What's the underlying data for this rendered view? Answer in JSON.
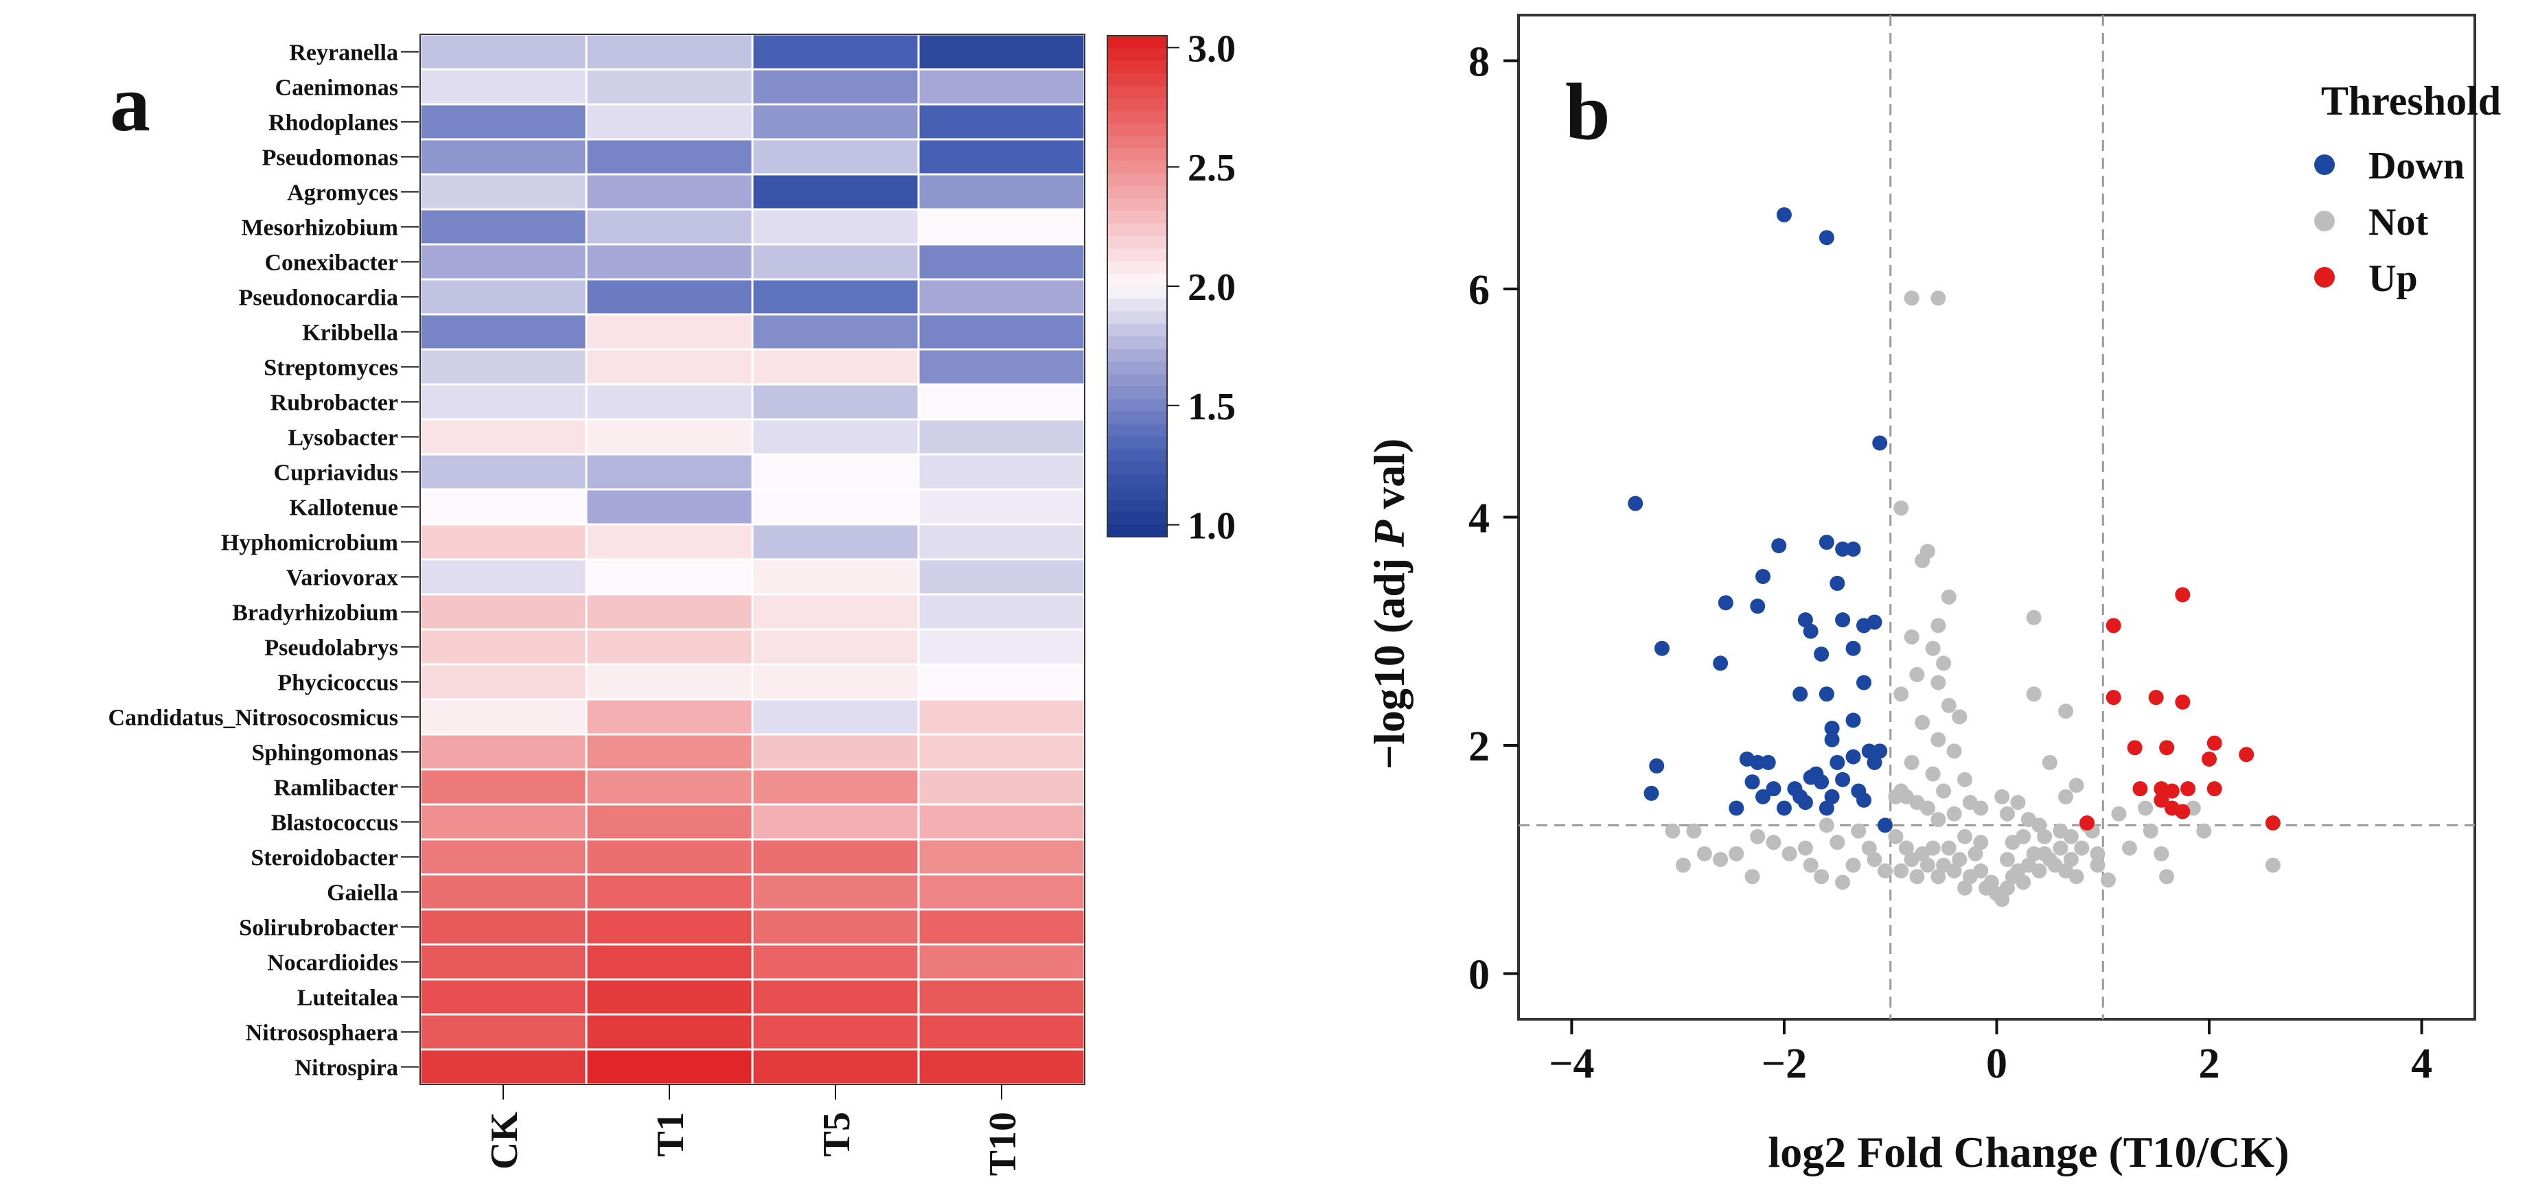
{
  "panel_a": {
    "label": "a",
    "chart_data": {
      "type": "heatmap",
      "columns": [
        "CK",
        "T1",
        "T5",
        "T10"
      ],
      "rows": [
        "Reyranella",
        "Caenimonas",
        "Rhodoplanes",
        "Pseudomonas",
        "Agromyces",
        "Mesorhizobium",
        "Conexibacter",
        "Pseudonocardia",
        "Kribbella",
        "Streptomyces",
        "Rubrobacter",
        "Lysobacter",
        "Cupriavidus",
        "Kallotenue",
        "Hyphomicrobium",
        "Variovorax",
        "Bradyrhizobium",
        "Pseudolabrys",
        "Phycicoccus",
        "Candidatus_Nitrosocosmicus",
        "Sphingomonas",
        "Ramlibacter",
        "Blastococcus",
        "Steroidobacter",
        "Gaiella",
        "Solirubrobacter",
        "Nocardioides",
        "Luteitalea",
        "Nitrososphaera",
        "Nitrospira"
      ],
      "values": [
        [
          1.8,
          1.8,
          1.3,
          1.1
        ],
        [
          1.9,
          1.85,
          1.55,
          1.7
        ],
        [
          1.5,
          1.9,
          1.6,
          1.3
        ],
        [
          1.6,
          1.5,
          1.8,
          1.3
        ],
        [
          1.85,
          1.7,
          1.2,
          1.6
        ],
        [
          1.5,
          1.8,
          1.9,
          2.0
        ],
        [
          1.7,
          1.7,
          1.8,
          1.5
        ],
        [
          1.8,
          1.45,
          1.4,
          1.7
        ],
        [
          1.5,
          2.1,
          1.55,
          1.5
        ],
        [
          1.85,
          2.1,
          2.1,
          1.55
        ],
        [
          1.9,
          1.9,
          1.8,
          2.0
        ],
        [
          2.1,
          2.05,
          1.9,
          1.85
        ],
        [
          1.8,
          1.75,
          2.0,
          1.9
        ],
        [
          2.0,
          1.7,
          2.0,
          1.95
        ],
        [
          2.2,
          2.1,
          1.8,
          1.9
        ],
        [
          1.9,
          2.0,
          2.05,
          1.85
        ],
        [
          2.25,
          2.25,
          2.1,
          1.9
        ],
        [
          2.2,
          2.2,
          2.1,
          1.95
        ],
        [
          2.15,
          2.05,
          2.05,
          2.0
        ],
        [
          2.05,
          2.35,
          1.9,
          2.2
        ],
        [
          2.4,
          2.5,
          2.25,
          2.2
        ],
        [
          2.6,
          2.5,
          2.5,
          2.25
        ],
        [
          2.5,
          2.6,
          2.35,
          2.35
        ],
        [
          2.6,
          2.65,
          2.65,
          2.5
        ],
        [
          2.65,
          2.7,
          2.6,
          2.55
        ],
        [
          2.75,
          2.8,
          2.65,
          2.7
        ],
        [
          2.75,
          2.85,
          2.7,
          2.6
        ],
        [
          2.8,
          2.9,
          2.8,
          2.75
        ],
        [
          2.75,
          2.9,
          2.8,
          2.8
        ],
        [
          2.9,
          3.0,
          2.9,
          2.9
        ]
      ],
      "colorbar": {
        "min": 0.95,
        "max": 3.05,
        "ticks": [
          "3.0",
          "2.5",
          "2.0",
          "1.5",
          "1.0"
        ],
        "tick_values": [
          3.0,
          2.5,
          2.0,
          1.5,
          1.0
        ]
      }
    }
  },
  "panel_b": {
    "label": "b",
    "chart_data": {
      "type": "scatter",
      "xlabel_prefix": "log2 Fold Change (T10/CK)",
      "ylabel_prefix": "−log10 (adj ",
      "ylabel_italic": "P",
      "ylabel_suffix": " val)",
      "xlim": [
        -4.5,
        4.5
      ],
      "ylim": [
        -0.4,
        8.4
      ],
      "xticks": [
        -4,
        -2,
        0,
        2,
        4
      ],
      "xtick_labels": [
        "−4",
        "−2",
        "0",
        "2",
        "4"
      ],
      "yticks": [
        0,
        2,
        4,
        6,
        8
      ],
      "ytick_labels": [
        "0",
        "2",
        "4",
        "6",
        "8"
      ],
      "vlines": [
        -1,
        1
      ],
      "hline": 1.3,
      "legend_title": "Threshold",
      "legend_placement": "top-right",
      "series": [
        {
          "name": "Down",
          "color": "#1c47a0",
          "points": [
            [
              -3.4,
              4.12
            ],
            [
              -2.0,
              6.65
            ],
            [
              -1.6,
              6.45
            ],
            [
              -1.1,
              4.65
            ],
            [
              -3.15,
              2.85
            ],
            [
              -3.2,
              1.82
            ],
            [
              -3.25,
              1.58
            ],
            [
              -2.55,
              3.25
            ],
            [
              -2.2,
              3.48
            ],
            [
              -2.25,
              3.22
            ],
            [
              -2.6,
              2.72
            ],
            [
              -2.35,
              1.88
            ],
            [
              -2.25,
              1.85
            ],
            [
              -2.15,
              1.85
            ],
            [
              -2.3,
              1.68
            ],
            [
              -2.2,
              1.55
            ],
            [
              -2.1,
              1.62
            ],
            [
              -2.0,
              1.45
            ],
            [
              -2.45,
              1.45
            ],
            [
              -2.05,
              3.75
            ],
            [
              -1.8,
              3.1
            ],
            [
              -1.85,
              2.45
            ],
            [
              -1.75,
              3.0
            ],
            [
              -1.6,
              3.78
            ],
            [
              -1.45,
              3.72
            ],
            [
              -1.35,
              3.72
            ],
            [
              -1.5,
              3.42
            ],
            [
              -1.45,
              3.1
            ],
            [
              -1.25,
              3.05
            ],
            [
              -1.15,
              3.08
            ],
            [
              -1.65,
              2.8
            ],
            [
              -1.35,
              2.85
            ],
            [
              -1.25,
              2.55
            ],
            [
              -1.6,
              2.45
            ],
            [
              -1.55,
              2.15
            ],
            [
              -1.55,
              2.05
            ],
            [
              -1.35,
              2.22
            ],
            [
              -1.2,
              1.95
            ],
            [
              -1.1,
              1.95
            ],
            [
              -1.15,
              1.85
            ],
            [
              -1.5,
              1.85
            ],
            [
              -1.35,
              1.9
            ],
            [
              -1.75,
              1.72
            ],
            [
              -1.65,
              1.68
            ],
            [
              -1.55,
              1.55
            ],
            [
              -1.45,
              1.7
            ],
            [
              -1.3,
              1.6
            ],
            [
              -1.25,
              1.52
            ],
            [
              -1.6,
              1.45
            ],
            [
              -1.8,
              1.5
            ],
            [
              -1.9,
              1.62
            ],
            [
              -1.05,
              1.3
            ],
            [
              -1.85,
              1.55
            ],
            [
              -1.7,
              1.75
            ]
          ]
        },
        {
          "name": "Not",
          "color": "#bdbdbd",
          "points": [
            [
              -0.8,
              5.92
            ],
            [
              -0.55,
              5.92
            ],
            [
              -0.9,
              4.08
            ],
            [
              -0.65,
              3.7
            ],
            [
              -0.7,
              3.62
            ],
            [
              -0.45,
              3.3
            ],
            [
              -0.55,
              3.05
            ],
            [
              -0.8,
              2.95
            ],
            [
              -0.6,
              2.85
            ],
            [
              -0.5,
              2.72
            ],
            [
              -0.75,
              2.62
            ],
            [
              -0.55,
              2.55
            ],
            [
              -0.9,
              2.45
            ],
            [
              -0.45,
              2.35
            ],
            [
              -0.35,
              2.25
            ],
            [
              -0.7,
              2.2
            ],
            [
              -0.55,
              2.05
            ],
            [
              -0.4,
              1.95
            ],
            [
              -0.8,
              1.85
            ],
            [
              -0.6,
              1.75
            ],
            [
              -0.3,
              1.7
            ],
            [
              -0.5,
              1.6
            ],
            [
              -0.85,
              1.55
            ],
            [
              -0.25,
              1.5
            ],
            [
              -0.65,
              1.45
            ],
            [
              -0.4,
              1.4
            ],
            [
              -0.15,
              1.45
            ],
            [
              -0.55,
              1.35
            ],
            [
              -0.9,
              1.6
            ],
            [
              -0.75,
              1.5
            ],
            [
              -0.95,
              1.55
            ],
            [
              0.35,
              3.12
            ],
            [
              0.35,
              2.45
            ],
            [
              0.65,
              2.3
            ],
            [
              0.5,
              1.85
            ],
            [
              0.65,
              1.55
            ],
            [
              0.75,
              1.65
            ],
            [
              0.9,
              1.25
            ],
            [
              0.2,
              1.5
            ],
            [
              0.05,
              1.55
            ],
            [
              0.1,
              1.4
            ],
            [
              0.3,
              1.35
            ],
            [
              0.45,
              1.2
            ],
            [
              0.6,
              1.25
            ],
            [
              0.85,
              1.3
            ],
            [
              0.8,
              1.1
            ],
            [
              0.95,
              0.95
            ],
            [
              -0.3,
              1.2
            ],
            [
              -0.2,
              1.05
            ],
            [
              -0.15,
              0.9
            ],
            [
              -0.05,
              0.8
            ],
            [
              0.0,
              0.7
            ],
            [
              0.05,
              0.65
            ],
            [
              0.1,
              0.75
            ],
            [
              0.15,
              0.85
            ],
            [
              0.2,
              0.9
            ],
            [
              0.25,
              0.8
            ],
            [
              0.3,
              0.95
            ],
            [
              0.35,
              1.05
            ],
            [
              0.4,
              0.9
            ],
            [
              0.45,
              1.05
            ],
            [
              0.5,
              1.0
            ],
            [
              0.55,
              0.95
            ],
            [
              0.6,
              1.1
            ],
            [
              0.65,
              0.9
            ],
            [
              0.7,
              1.0
            ],
            [
              -0.35,
              1.0
            ],
            [
              -0.4,
              0.9
            ],
            [
              -0.45,
              1.1
            ],
            [
              -0.5,
              0.95
            ],
            [
              -0.55,
              0.85
            ],
            [
              -0.6,
              1.1
            ],
            [
              -0.65,
              0.95
            ],
            [
              -0.7,
              1.05
            ],
            [
              -0.75,
              0.85
            ],
            [
              -0.8,
              1.0
            ],
            [
              -0.85,
              1.1
            ],
            [
              -0.9,
              0.9
            ],
            [
              -0.95,
              1.2
            ],
            [
              -0.1,
              0.75
            ],
            [
              -0.25,
              0.85
            ],
            [
              -0.3,
              0.75
            ],
            [
              0.15,
              1.15
            ],
            [
              0.25,
              1.2
            ],
            [
              0.4,
              1.3
            ],
            [
              0.7,
              1.2
            ],
            [
              0.75,
              0.85
            ],
            [
              0.95,
              1.05
            ],
            [
              0.1,
              1.0
            ],
            [
              -0.15,
              1.15
            ],
            [
              1.05,
              0.82
            ],
            [
              1.15,
              1.4
            ],
            [
              1.4,
              1.45
            ],
            [
              1.45,
              1.25
            ],
            [
              1.55,
              1.05
            ],
            [
              1.6,
              0.85
            ],
            [
              1.85,
              1.45
            ],
            [
              1.95,
              1.25
            ],
            [
              2.6,
              0.95
            ],
            [
              1.25,
              1.1
            ],
            [
              -1.05,
              0.9
            ],
            [
              -1.2,
              1.1
            ],
            [
              -1.35,
              0.95
            ],
            [
              -1.5,
              1.15
            ],
            [
              -1.65,
              0.85
            ],
            [
              -1.8,
              1.1
            ],
            [
              -1.95,
              1.05
            ],
            [
              -2.1,
              1.15
            ],
            [
              -2.25,
              1.2
            ],
            [
              -2.45,
              1.05
            ],
            [
              -2.6,
              1.0
            ],
            [
              -2.75,
              1.05
            ],
            [
              -2.85,
              1.25
            ],
            [
              -2.95,
              0.95
            ],
            [
              -3.05,
              1.25
            ],
            [
              -2.3,
              0.85
            ],
            [
              -1.45,
              0.8
            ],
            [
              -1.15,
              1.0
            ],
            [
              -1.3,
              1.25
            ],
            [
              -1.6,
              1.3
            ],
            [
              -1.75,
              0.95
            ]
          ]
        },
        {
          "name": "Up",
          "color": "#e31a1c",
          "points": [
            [
              1.1,
              3.05
            ],
            [
              1.75,
              3.32
            ],
            [
              1.1,
              2.42
            ],
            [
              1.5,
              2.42
            ],
            [
              1.75,
              2.38
            ],
            [
              2.05,
              2.02
            ],
            [
              1.3,
              1.98
            ],
            [
              1.6,
              1.98
            ],
            [
              2.0,
              1.88
            ],
            [
              2.35,
              1.92
            ],
            [
              1.35,
              1.62
            ],
            [
              1.55,
              1.62
            ],
            [
              1.65,
              1.6
            ],
            [
              1.8,
              1.62
            ],
            [
              2.05,
              1.62
            ],
            [
              1.55,
              1.52
            ],
            [
              1.65,
              1.45
            ],
            [
              1.75,
              1.42
            ],
            [
              2.6,
              1.32
            ],
            [
              0.85,
              1.32
            ]
          ]
        }
      ]
    }
  }
}
